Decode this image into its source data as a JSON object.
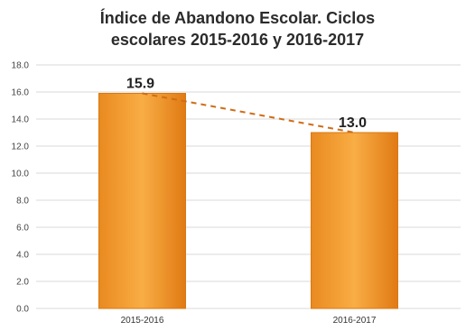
{
  "chart_data": {
    "type": "bar",
    "title_lines": [
      "Índice de Abandono Escolar. Ciclos",
      "escolares 2015-2016 y 2016-2017"
    ],
    "categories": [
      "2015-2016",
      "2016-2017"
    ],
    "values": [
      15.9,
      13.0
    ],
    "data_labels": [
      "15.9",
      "13.0"
    ],
    "ylim": [
      0,
      18
    ],
    "yticks": [
      "0.0",
      "2.0",
      "4.0",
      "6.0",
      "8.0",
      "10.0",
      "12.0",
      "14.0",
      "16.0",
      "18.0"
    ],
    "grid": true,
    "trend_line": "dashed",
    "colors": {
      "bar_top": "#f8a83a",
      "bar_bottom": "#e07a14",
      "bar_edge": "#d9780f",
      "trend": "#d06d18",
      "grid": "#d9d9d9"
    }
  }
}
